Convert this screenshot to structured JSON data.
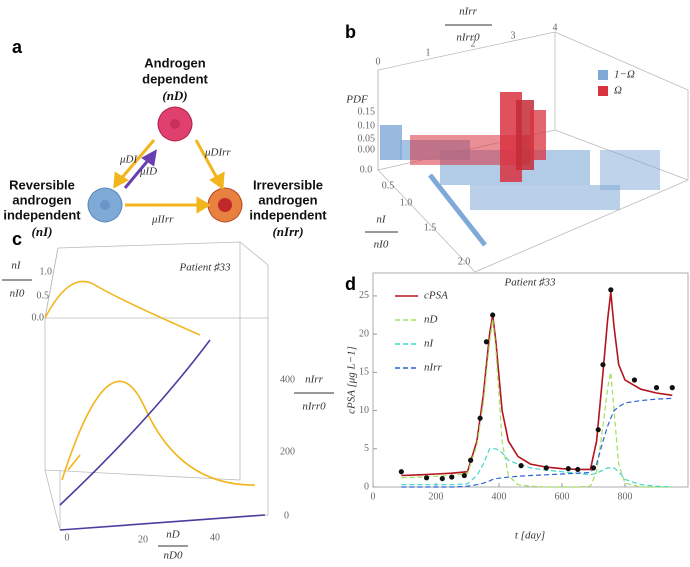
{
  "panels": {
    "a": {
      "letter": "a",
      "dependent": {
        "lines": [
          "Androgen",
          "dependent"
        ],
        "symbol": "(nD)"
      },
      "reversible": {
        "lines": [
          "Reversible",
          "androgen",
          "independent"
        ],
        "symbol": "(nI)"
      },
      "irreversible": {
        "lines": [
          "Irreversible",
          "androgen",
          "independent"
        ],
        "symbol": "(nIrr)"
      },
      "rates": [
        "μDI",
        "μID",
        "μDIrr",
        "μIIrr"
      ]
    },
    "b": {
      "letter": "b",
      "top_axis": {
        "num": "nIrr",
        "den": "nIrr0",
        "ticks": [
          "0",
          "1",
          "2",
          "3",
          "4"
        ]
      },
      "z_axis": {
        "label": "PDF",
        "ticks": [
          "0.15",
          "0.10",
          "0.05",
          "0.00"
        ]
      },
      "side_axis": {
        "num": "nI",
        "den": "nI0",
        "ticks": [
          "0.0",
          "0.5",
          "1.0",
          "1.5",
          "2.0"
        ]
      },
      "legend": [
        {
          "name": "1−Ω",
          "color": "#7fa9d6"
        },
        {
          "name": "Ω",
          "color": "#d9333f"
        }
      ]
    },
    "c": {
      "letter": "c",
      "title": "Patient ♯33",
      "left_axis": {
        "num": "nI",
        "den": "nI0",
        "ticks": [
          "1.0",
          "0.5",
          "0.0"
        ]
      },
      "right_axis": {
        "num": "nIrr",
        "den": "nIrr0",
        "ticks": [
          "400",
          "200",
          "0"
        ]
      },
      "bottom_axis": {
        "num": "nD",
        "den": "nD0",
        "ticks": [
          "0",
          "20",
          "40"
        ]
      }
    },
    "d": {
      "letter": "d"
    }
  },
  "chart_data": {
    "type": "line",
    "title": "Patient ♯33",
    "x_label": "t [day]",
    "y_label": "cPSA [μg L−1]",
    "x": [
      90,
      150,
      200,
      250,
      300,
      330,
      350,
      370,
      380,
      390,
      410,
      430,
      460,
      500,
      550,
      600,
      650,
      690,
      710,
      730,
      745,
      755,
      765,
      780,
      800,
      850,
      900,
      950
    ],
    "series": [
      {
        "name": "cPSA",
        "color": "#b3141e",
        "dash": false,
        "values": [
          1.5,
          1.6,
          1.7,
          1.8,
          2,
          6,
          12,
          20,
          22.5,
          19,
          10,
          6,
          4,
          3,
          2.6,
          2.4,
          2.3,
          2.3,
          6,
          15,
          22,
          25.5,
          21,
          16,
          14,
          12.8,
          12.3,
          12
        ]
      },
      {
        "name": "nD",
        "color": "#9ee05a",
        "dash": true,
        "values": [
          1.2,
          1.3,
          1.4,
          1.5,
          1.8,
          5.5,
          11,
          19,
          22,
          18,
          6,
          1.5,
          0.3,
          0.1,
          0,
          0,
          0,
          0.1,
          2,
          8,
          13,
          15,
          10,
          3,
          0.5,
          0,
          0,
          0
        ]
      },
      {
        "name": "nI",
        "color": "#3fd7c8",
        "dash": true,
        "values": [
          0.3,
          0.3,
          0.3,
          0.3,
          0.4,
          1.5,
          3,
          5,
          5,
          5,
          4.5,
          3.5,
          3,
          2.5,
          2.2,
          2,
          1.8,
          1.6,
          1.8,
          2.2,
          2.5,
          2.5,
          2.5,
          2,
          1,
          0.3,
          0.1,
          0
        ]
      },
      {
        "name": "nIrr",
        "color": "#2f62d6",
        "dash": true,
        "values": [
          0,
          0,
          0,
          0,
          0.1,
          0.3,
          0.5,
          0.8,
          1,
          1.1,
          1.2,
          1.3,
          1.4,
          1.5,
          1.6,
          1.7,
          1.8,
          1.9,
          3,
          6,
          8,
          9,
          10,
          10.5,
          11,
          11.3,
          11.5,
          11.6
        ]
      }
    ],
    "observed": {
      "color": "#111111",
      "x": [
        90,
        170,
        220,
        250,
        290,
        310,
        340,
        360,
        380,
        470,
        550,
        620,
        650,
        700,
        715,
        730,
        755,
        830,
        900,
        950
      ],
      "y": [
        2,
        1.2,
        1.1,
        1.3,
        1.5,
        3.5,
        9,
        19,
        22.5,
        2.8,
        2.5,
        2.4,
        2.3,
        2.5,
        7.5,
        16,
        25.8,
        14,
        13,
        13
      ]
    },
    "xlim": [
      0,
      1000
    ],
    "ylim": [
      0,
      28
    ],
    "xticks": [
      0,
      200,
      400,
      600,
      800
    ],
    "yticks": [
      0,
      5,
      10,
      15,
      20,
      25
    ]
  }
}
